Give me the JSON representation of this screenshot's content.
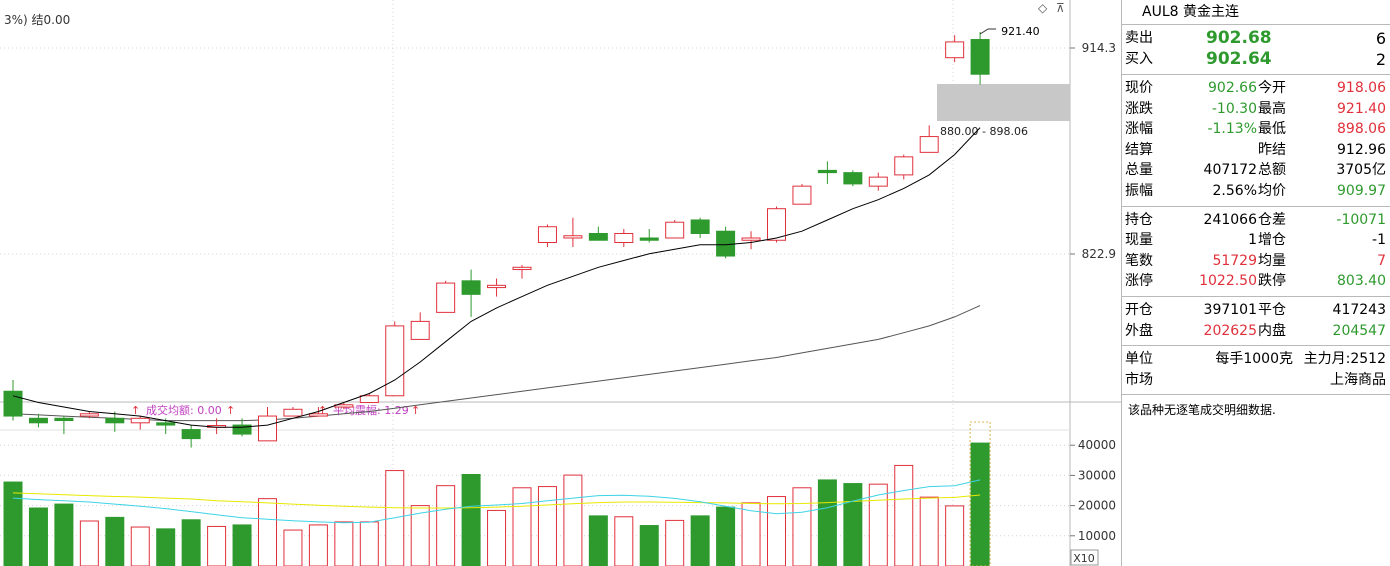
{
  "chart_header": {
    "main_info": "3%) 结0.00",
    "volume_info_1": "成交均额: 0.00",
    "volume_info_2": "平均震幅: 1.29"
  },
  "chart_data": {
    "type": "candlestick",
    "price_axis_ticks": [
      914.3,
      822.9
    ],
    "volume_axis_ticks": [
      40000,
      30000,
      20000,
      10000
    ],
    "volume_multiplier_label": "X10",
    "max_label": "921.40",
    "range_label": "880.00 - 898.06",
    "candles": [
      {
        "o": 762,
        "c": 751,
        "h": 767,
        "l": 749,
        "v": 27800
      },
      {
        "o": 750,
        "c": 748,
        "h": 752,
        "l": 746,
        "v": 19200
      },
      {
        "o": 750,
        "c": 749,
        "h": 751,
        "l": 743,
        "v": 20500
      },
      {
        "o": 751,
        "c": 752,
        "h": 753,
        "l": 750,
        "v": 14900
      },
      {
        "o": 750,
        "c": 748,
        "h": 753,
        "l": 744,
        "v": 16100
      },
      {
        "o": 748,
        "c": 750,
        "h": 751,
        "l": 745,
        "v": 12900
      },
      {
        "o": 748,
        "c": 747,
        "h": 750,
        "l": 743,
        "v": 12300
      },
      {
        "o": 745,
        "c": 741,
        "h": 747,
        "l": 737,
        "v": 15300
      },
      {
        "o": 746,
        "c": 746.8,
        "h": 750,
        "l": 743,
        "v": 13100
      },
      {
        "o": 747,
        "c": 743,
        "h": 750,
        "l": 742,
        "v": 13600
      },
      {
        "o": 740,
        "c": 751,
        "h": 755,
        "l": 740,
        "v": 22300
      },
      {
        "o": 751,
        "c": 754,
        "h": 755,
        "l": 751,
        "v": 11900
      },
      {
        "o": 751,
        "c": 752,
        "h": 755,
        "l": 751,
        "v": 13600
      },
      {
        "o": 755,
        "c": 756,
        "h": 757,
        "l": 754,
        "v": 14600
      },
      {
        "o": 757,
        "c": 760,
        "h": 761,
        "l": 757,
        "v": 14600
      },
      {
        "o": 760,
        "c": 791,
        "h": 793,
        "l": 760,
        "v": 31600
      },
      {
        "o": 785,
        "c": 793,
        "h": 797,
        "l": 785,
        "v": 20000
      },
      {
        "o": 797,
        "c": 810,
        "h": 811,
        "l": 797,
        "v": 26600
      },
      {
        "o": 811,
        "c": 805,
        "h": 816,
        "l": 795,
        "v": 30300
      },
      {
        "o": 808,
        "c": 809,
        "h": 812,
        "l": 804,
        "v": 18400
      },
      {
        "o": 816,
        "c": 817,
        "h": 818,
        "l": 812,
        "v": 25900
      },
      {
        "o": 828,
        "c": 835,
        "h": 836,
        "l": 826,
        "v": 26300
      },
      {
        "o": 830,
        "c": 831,
        "h": 839,
        "l": 826,
        "v": 30100
      },
      {
        "o": 832,
        "c": 829,
        "h": 835,
        "l": 829,
        "v": 16600
      },
      {
        "o": 828,
        "c": 832,
        "h": 834,
        "l": 826,
        "v": 16300
      },
      {
        "o": 830,
        "c": 829,
        "h": 834,
        "l": 828,
        "v": 13400
      },
      {
        "o": 830,
        "c": 837,
        "h": 838,
        "l": 830,
        "v": 15100
      },
      {
        "o": 838,
        "c": 832,
        "h": 839,
        "l": 830,
        "v": 16600
      },
      {
        "o": 833,
        "c": 822,
        "h": 835,
        "l": 821,
        "v": 19500
      },
      {
        "o": 829,
        "c": 830,
        "h": 833,
        "l": 825,
        "v": 20900
      },
      {
        "o": 829,
        "c": 843,
        "h": 844,
        "l": 828,
        "v": 23000
      },
      {
        "o": 845,
        "c": 853,
        "h": 854,
        "l": 845,
        "v": 25900
      },
      {
        "o": 860,
        "c": 859,
        "h": 864,
        "l": 854,
        "v": 28500
      },
      {
        "o": 859,
        "c": 854,
        "h": 860,
        "l": 853,
        "v": 27300
      },
      {
        "o": 853,
        "c": 857,
        "h": 859,
        "l": 851,
        "v": 27100
      },
      {
        "o": 858,
        "c": 866,
        "h": 867,
        "l": 856,
        "v": 33300
      },
      {
        "o": 868,
        "c": 875,
        "h": 880,
        "l": 868,
        "v": 22800
      },
      {
        "o": 910,
        "c": 917,
        "h": 920,
        "l": 908,
        "v": 19900
      },
      {
        "o": 918.06,
        "c": 902.66,
        "h": 921.4,
        "l": 898.06,
        "v": 40700
      }
    ],
    "ma_short": [
      760,
      757,
      755,
      753,
      752,
      751,
      749,
      747,
      746,
      746,
      747,
      750,
      753,
      757,
      761,
      767,
      775,
      784,
      793,
      799,
      804,
      809,
      813,
      817,
      820,
      823,
      825,
      827,
      827,
      828,
      830,
      833,
      838,
      843,
      847,
      852,
      858,
      867,
      879
    ],
    "ma_long": [
      752,
      751.5,
      751,
      750.5,
      750,
      749.5,
      749,
      749,
      749,
      749,
      749.3,
      750,
      751,
      752,
      753,
      754.5,
      756,
      757.5,
      759,
      760.5,
      762,
      763.5,
      765,
      766.5,
      768,
      769.5,
      771,
      772.5,
      774,
      775.5,
      777,
      779,
      781,
      783,
      785,
      788,
      791,
      795,
      800
    ],
    "vol_ma_cyan": [
      22500,
      22000,
      21600,
      21200,
      20500,
      19800,
      19000,
      18000,
      17000,
      16000,
      15500,
      15000,
      14600,
      14300,
      14500,
      16000,
      17500,
      18800,
      19800,
      20200,
      20700,
      21600,
      22500,
      23300,
      23400,
      23100,
      22400,
      21300,
      19800,
      18300,
      17300,
      17800,
      19300,
      21500,
      23500,
      25000,
      26300,
      26600,
      28500
    ],
    "vol_ma_yellow": [
      24200,
      23900,
      23600,
      23300,
      23000,
      22800,
      22500,
      22200,
      21600,
      21300,
      20900,
      20500,
      20100,
      19800,
      19500,
      19300,
      19200,
      19200,
      19300,
      19500,
      19800,
      20200,
      20600,
      21000,
      21200,
      21200,
      21100,
      21000,
      20900,
      20700,
      20600,
      20700,
      21000,
      21400,
      21800,
      22200,
      22500,
      22700,
      23500
    ]
  },
  "quote": {
    "title": "AUL8 黄金主连",
    "sell_label": "卖出",
    "sell_price": "902.68",
    "sell_qty": "6",
    "buy_label": "买入",
    "buy_price": "902.64",
    "buy_qty": "2",
    "rows1": [
      {
        "l1": "现价",
        "v1": "902.66",
        "c1": "green",
        "l2": "今开",
        "v2": "918.06",
        "c2": "red"
      },
      {
        "l1": "涨跌",
        "v1": "-10.30",
        "c1": "green",
        "l2": "最高",
        "v2": "921.40",
        "c2": "red"
      },
      {
        "l1": "涨幅",
        "v1": "-1.13%",
        "c1": "green",
        "l2": "最低",
        "v2": "898.06",
        "c2": "red"
      },
      {
        "l1": "结算",
        "v1": "",
        "c1": "",
        "l2": "昨结",
        "v2": "912.96",
        "c2": ""
      },
      {
        "l1": "总量",
        "v1": "407172",
        "c1": "",
        "l2": "总额",
        "v2": "3705亿",
        "c2": ""
      },
      {
        "l1": "振幅",
        "v1": "2.56%",
        "c1": "",
        "l2": "均价",
        "v2": "909.97",
        "c2": "green"
      }
    ],
    "rows2": [
      {
        "l1": "持仓",
        "v1": "241066",
        "c1": "",
        "l2": "仓差",
        "v2": "-10071",
        "c2": "green"
      },
      {
        "l1": "现量",
        "v1": "1",
        "c1": "",
        "l2": "增仓",
        "v2": "-1",
        "c2": ""
      },
      {
        "l1": "笔数",
        "v1": "51729",
        "c1": "red",
        "l2": "均量",
        "v2": "7",
        "c2": "red"
      },
      {
        "l1": "涨停",
        "v1": "1022.50",
        "c1": "red",
        "l2": "跌停",
        "v2": "803.40",
        "c2": "green"
      }
    ],
    "rows3": [
      {
        "l1": "开仓",
        "v1": "397101",
        "c1": "",
        "l2": "平仓",
        "v2": "417243",
        "c2": ""
      },
      {
        "l1": "外盘",
        "v1": "202625",
        "c1": "red",
        "l2": "内盘",
        "v2": "204547",
        "c2": "green"
      }
    ],
    "unit_label": "单位",
    "unit_value": "每手1000克",
    "main_month": "主力月:2512",
    "market_label": "市场",
    "market_value": "上海商品",
    "note": "该品种无逐笔成交明细数据."
  },
  "colors": {
    "up": "#e0303b",
    "down": "#2e9a2e",
    "ma_short": "#000000",
    "ma_long": "#555555",
    "vol_cyan": "#3fd3e6",
    "vol_yellow": "#e8e800",
    "grid": "#d4d4d4",
    "highlight": "#c8c8c8"
  }
}
